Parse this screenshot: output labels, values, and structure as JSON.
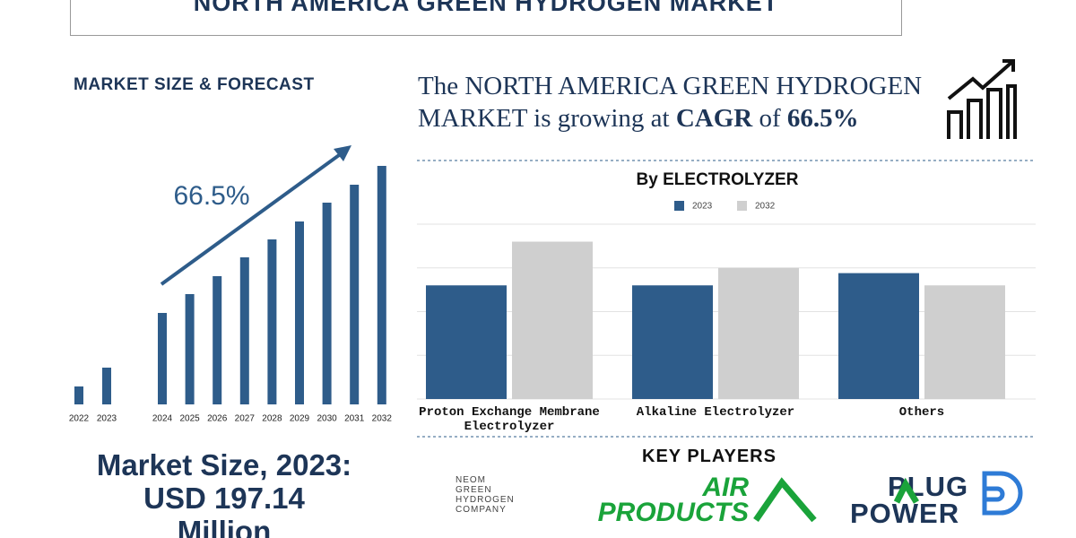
{
  "header": {
    "title": "NORTH AMERICA GREEN HYDROGEN MARKET"
  },
  "market_size": {
    "heading": "MARKET SIZE & FORECAST",
    "cagr_label": "66.5%",
    "summary_line1": "Market Size, 2023:",
    "summary_line2": "USD 197.14",
    "summary_line3": "Million"
  },
  "cagr_statement": {
    "lead": "The NORTH AMERICA GREEN HYDROGEN MARKET is growing at ",
    "emphasis": "CAGR",
    "middle": " of ",
    "value": "66.5%"
  },
  "key_players": {
    "heading": "KEY PLAYERS",
    "neom": [
      "NEOM",
      "GREEN",
      "HYDROGEN",
      "COMPANY"
    ],
    "air_products": [
      "AIR",
      "PRODUCTS"
    ],
    "plug_power": [
      "PLUG",
      "POWER"
    ]
  },
  "chart_data": [
    {
      "type": "bar",
      "categories": [
        "2022",
        "2023",
        "2024",
        "2025",
        "2026",
        "2027",
        "2028",
        "2029",
        "2030",
        "2031",
        "2032"
      ],
      "values": [
        20,
        41,
        102,
        123,
        143,
        164,
        184,
        204,
        225,
        245,
        266
      ],
      "color": "#2e5c8a"
    },
    {
      "type": "grouped-bar",
      "title": "By ELECTROLYZER",
      "categories": [
        "Proton Exchange Membrane Electrolyzer",
        "Alkaline Electrolyzer",
        "Others"
      ],
      "series": [
        {
          "name": "2023",
          "color": "#2e5c8a",
          "values": [
            130,
            130,
            144
          ]
        },
        {
          "name": "2032",
          "color": "#cfcfcf",
          "values": [
            180,
            150,
            130
          ]
        }
      ],
      "ylim": [
        0,
        200
      ],
      "yticks": [
        0,
        50,
        100,
        150,
        200
      ],
      "grid": true,
      "legend": "top"
    }
  ]
}
